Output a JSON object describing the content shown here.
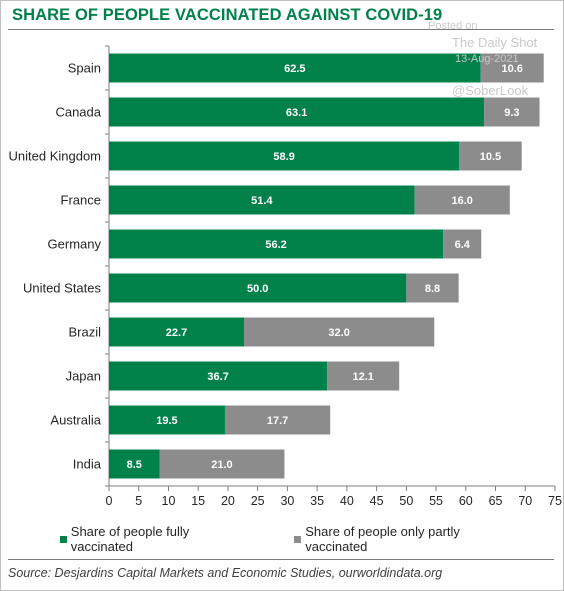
{
  "title": "SHARE OF PEOPLE VACCINATED AGAINST COVID-19",
  "watermark": {
    "line1": "Posted on",
    "line2": "The Daily Shot",
    "line3": "13-Aug-2021",
    "line4": "@SoberLook"
  },
  "source": "Source: Desjardins Capital Markets and Economic Studies, ourworldindata.org",
  "colors": {
    "fully": "#00814a",
    "partly": "#8c8c8c",
    "title": "#00814a"
  },
  "chart_data": {
    "type": "bar",
    "orientation": "horizontal",
    "stacked": true,
    "title": "SHARE OF PEOPLE VACCINATED AGAINST COVID-19",
    "categories": [
      "Spain",
      "Canada",
      "United Kingdom",
      "France",
      "Germany",
      "United States",
      "Brazil",
      "Japan",
      "Australia",
      "India"
    ],
    "series": [
      {
        "name": "Share of people fully vaccinated",
        "color": "#00814a",
        "values": [
          62.5,
          63.1,
          58.9,
          51.4,
          56.2,
          50.0,
          22.7,
          36.7,
          19.5,
          8.5
        ],
        "labels": [
          "62.5",
          "63.1",
          "58.9",
          "51.4",
          "56.2",
          "50.0",
          "22.7",
          "36.7",
          "19.5",
          "8.5"
        ]
      },
      {
        "name": "Share of people only partly vaccinated",
        "color": "#8c8c8c",
        "values": [
          10.6,
          9.3,
          10.5,
          16.0,
          6.4,
          8.8,
          32.0,
          12.1,
          17.7,
          21.0
        ],
        "labels": [
          "10.6",
          "9.3",
          "10.5",
          "16.0",
          "6.4",
          "8.8",
          "32.0",
          "12.1",
          "17.7",
          "21.0"
        ]
      }
    ],
    "xlim": [
      0,
      75
    ],
    "xticks": [
      0,
      5,
      10,
      15,
      20,
      25,
      30,
      35,
      40,
      45,
      50,
      55,
      60,
      65,
      70,
      75
    ],
    "grid": false,
    "legend_position": "bottom"
  }
}
